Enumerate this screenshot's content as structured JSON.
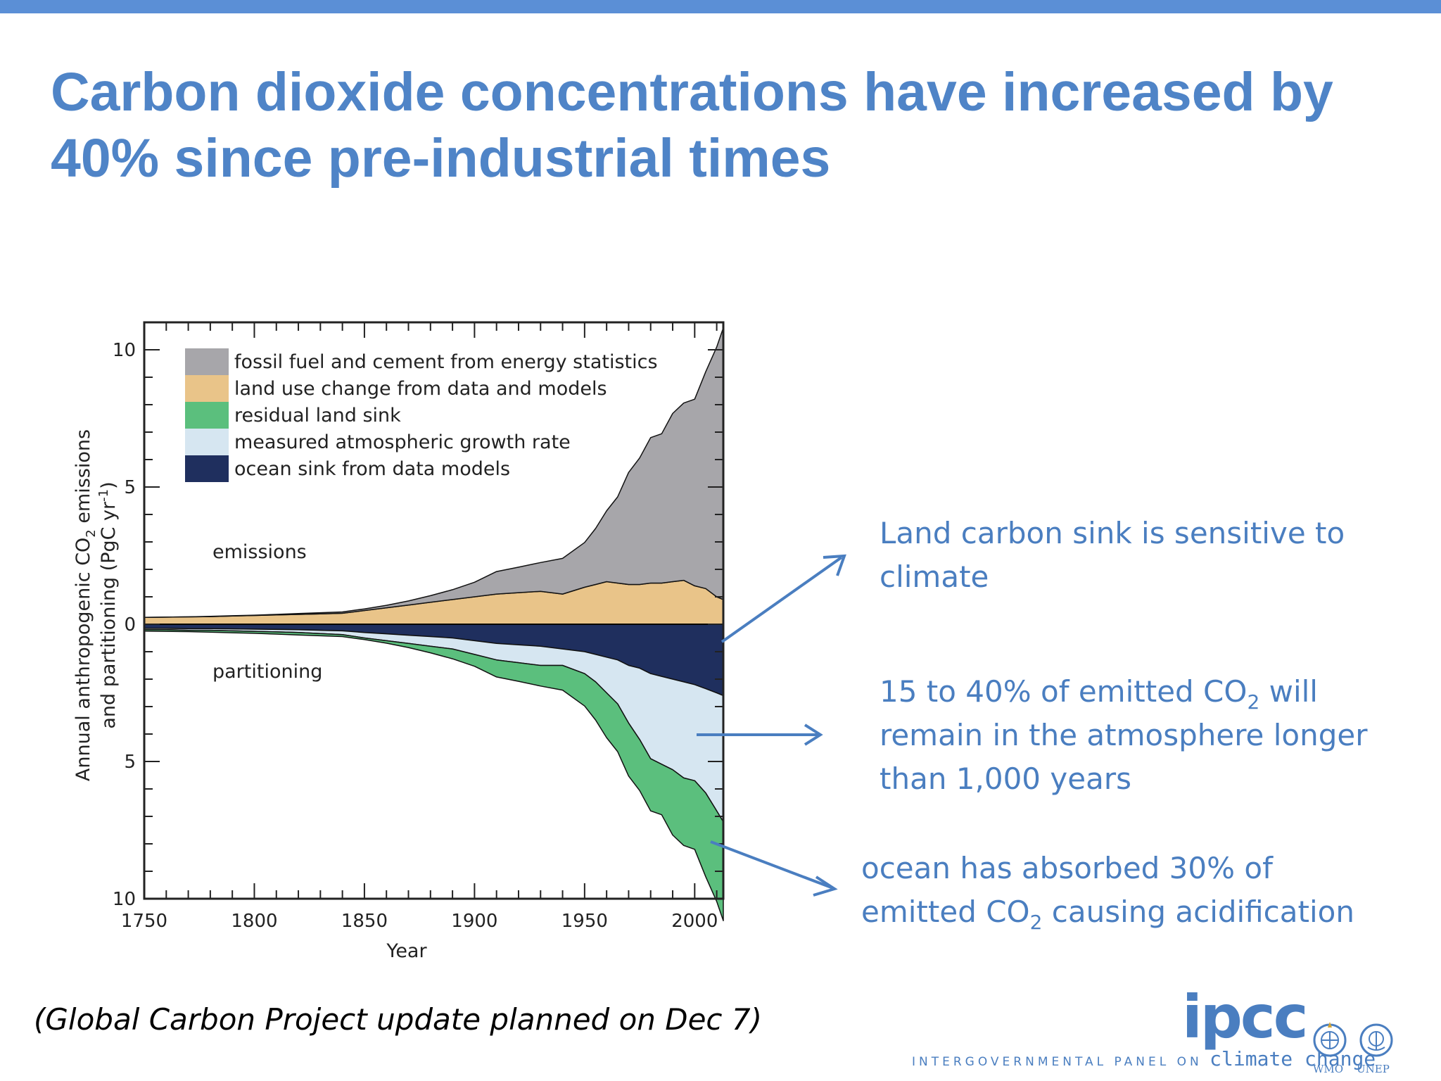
{
  "slide": {
    "title": "Carbon dioxide concentrations have increased by 40% since pre-industrial times",
    "footnote": "(Global Carbon Project update planned on Dec 7)",
    "logo": {
      "word": "ipcc",
      "line1": "INTERGOVERNMENTAL PANEL ON",
      "line2": "climate change",
      "org1": "WMO",
      "org2": "UNEP",
      "icons": [
        "wmo-emblem-icon",
        "unep-emblem-icon"
      ]
    },
    "annotations": [
      {
        "lines": [
          "Land carbon sink is sensitive to",
          "climate"
        ]
      },
      {
        "lines": [
          "15 to 40% of emitted CO",
          "2",
          " will",
          "remain in the atmosphere longer",
          "than 1,000 years"
        ]
      },
      {
        "lines": [
          "ocean has absorbed 30% of",
          "emitted CO",
          "2",
          " causing acidification"
        ]
      }
    ],
    "colors": {
      "title": "#4f84c7",
      "annotation": "#4a7ec0",
      "arrow": "#4a7ec0"
    }
  },
  "chart_data": {
    "type": "area",
    "xlabel": "Year",
    "ylabel": "Annual anthropogenic CO2 emissions and partitioning (PgC yr-1)",
    "ylabel_line1": "Annual anthropogenic CO",
    "ylabel_line1_sub": "2",
    "ylabel_line1_end": " emissions",
    "ylabel_line2": "and partitioning (PgC yr",
    "ylabel_line2_sup": "-1",
    "ylabel_line2_end": ")",
    "xlim": [
      1750,
      2013
    ],
    "ylim": [
      -10,
      11
    ],
    "x_ticks": [
      1750,
      1800,
      1850,
      1900,
      1950,
      2000
    ],
    "y_ticks": [
      10,
      5,
      0,
      -5,
      -10
    ],
    "y_tick_labels": [
      "10",
      "5",
      "0",
      "5",
      "10"
    ],
    "region_labels": [
      "emissions",
      "partitioning"
    ],
    "legend_position": "top-left",
    "legend": [
      {
        "name": "fossil fuel and cement from energy statistics",
        "color": "#a7a6aa"
      },
      {
        "name": "land use change from data and models",
        "color": "#e9c489"
      },
      {
        "name": "residual land sink",
        "color": "#5bbf7d"
      },
      {
        "name": "measured atmospheric growth rate",
        "color": "#d6e6f1"
      },
      {
        "name": "ocean sink from data models",
        "color": "#1f2f5e"
      }
    ],
    "years": [
      1750,
      1760,
      1770,
      1780,
      1790,
      1800,
      1810,
      1820,
      1830,
      1840,
      1850,
      1860,
      1870,
      1880,
      1890,
      1900,
      1910,
      1920,
      1930,
      1940,
      1950,
      1955,
      1960,
      1965,
      1970,
      1975,
      1980,
      1985,
      1990,
      1995,
      2000,
      2005,
      2010,
      2013
    ],
    "series": [
      {
        "name": "land use change from data and models",
        "values": [
          0.25,
          0.26,
          0.27,
          0.28,
          0.3,
          0.32,
          0.34,
          0.36,
          0.38,
          0.4,
          0.5,
          0.6,
          0.7,
          0.8,
          0.9,
          1.0,
          1.1,
          1.15,
          1.2,
          1.1,
          1.35,
          1.45,
          1.55,
          1.5,
          1.45,
          1.45,
          1.5,
          1.5,
          1.55,
          1.6,
          1.4,
          1.3,
          1.0,
          0.9
        ]
      },
      {
        "name": "fossil fuel and cement from energy statistics",
        "values": [
          0.0,
          0.0,
          0.0,
          0.01,
          0.01,
          0.01,
          0.02,
          0.03,
          0.04,
          0.05,
          0.06,
          0.09,
          0.15,
          0.24,
          0.36,
          0.53,
          0.82,
          0.93,
          1.05,
          1.3,
          1.63,
          2.04,
          2.58,
          3.14,
          4.08,
          4.61,
          5.3,
          5.44,
          6.13,
          6.46,
          6.8,
          7.9,
          9.1,
          9.9
        ]
      },
      {
        "name": "ocean sink from data models",
        "values": [
          -0.15,
          -0.15,
          -0.16,
          -0.16,
          -0.17,
          -0.18,
          -0.19,
          -0.2,
          -0.22,
          -0.24,
          -0.3,
          -0.35,
          -0.4,
          -0.45,
          -0.5,
          -0.6,
          -0.7,
          -0.75,
          -0.8,
          -0.9,
          -1.0,
          -1.1,
          -1.2,
          -1.3,
          -1.5,
          -1.6,
          -1.8,
          -1.9,
          -2.0,
          -2.1,
          -2.2,
          -2.35,
          -2.5,
          -2.6
        ]
      },
      {
        "name": "measured atmospheric growth rate",
        "values": [
          -0.05,
          -0.05,
          -0.06,
          -0.06,
          -0.07,
          -0.08,
          -0.09,
          -0.1,
          -0.12,
          -0.14,
          -0.2,
          -0.25,
          -0.3,
          -0.35,
          -0.4,
          -0.5,
          -0.6,
          -0.65,
          -0.7,
          -0.6,
          -0.8,
          -1.0,
          -1.3,
          -1.6,
          -2.1,
          -2.6,
          -3.1,
          -3.2,
          -3.3,
          -3.5,
          -3.5,
          -3.8,
          -4.3,
          -4.6
        ]
      },
      {
        "name": "residual land sink",
        "values": [
          -0.05,
          -0.06,
          -0.05,
          -0.07,
          -0.07,
          -0.07,
          -0.08,
          -0.09,
          -0.08,
          -0.07,
          -0.06,
          -0.09,
          -0.15,
          -0.24,
          -0.36,
          -0.43,
          -0.62,
          -0.68,
          -0.75,
          -0.9,
          -1.18,
          -1.39,
          -1.63,
          -1.74,
          -1.93,
          -1.86,
          -1.9,
          -1.84,
          -2.38,
          -2.46,
          -2.5,
          -3.05,
          -3.3,
          -3.6
        ]
      }
    ]
  }
}
